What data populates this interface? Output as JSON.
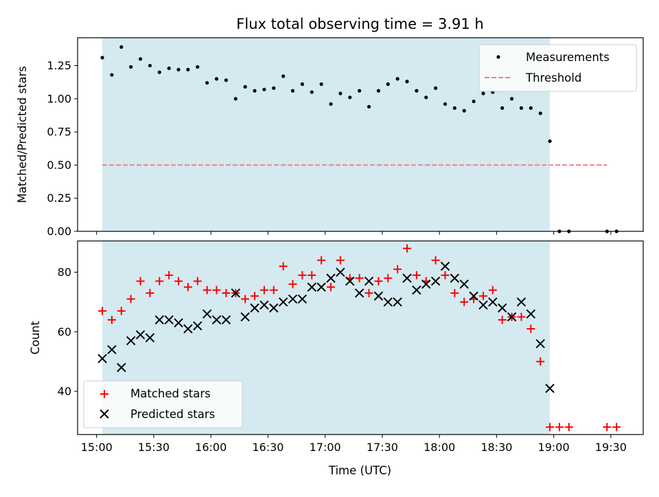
{
  "chart_data": {
    "title": "Flux total observing time = 3.91 h",
    "xlabel": "Time (UTC)",
    "x_tick_labels": [
      "15:00",
      "15:30",
      "16:00",
      "16:30",
      "17:00",
      "17:30",
      "18:00",
      "18:30",
      "19:00",
      "19:30"
    ],
    "x_tick_minutes": [
      0,
      30,
      60,
      90,
      120,
      150,
      180,
      210,
      240,
      270
    ],
    "xlim_minutes": [
      -10,
      287
    ],
    "shaded_span_minutes": [
      3,
      238
    ],
    "shaded_color": "#d4eaf0",
    "panels": [
      {
        "type": "scatter",
        "ylabel": "Matched/Predicted stars",
        "ylim": [
          0,
          1.46
        ],
        "y_ticks": [
          0.0,
          0.25,
          0.5,
          0.75,
          1.0,
          1.25
        ],
        "y_tick_labels": [
          "0.00",
          "0.25",
          "0.50",
          "0.75",
          "1.00",
          "1.25"
        ],
        "legend_position": "top-right",
        "legend": [
          "Measurements",
          "Threshold"
        ],
        "threshold": {
          "label": "Threshold",
          "y": 0.5,
          "x_range_minutes": [
            3,
            268
          ],
          "color": "#f08080"
        },
        "series": [
          {
            "name": "Measurements",
            "marker": "dot",
            "color": "#000000",
            "x": [
              3,
              8,
              13,
              18,
              23,
              28,
              33,
              38,
              43,
              48,
              53,
              58,
              63,
              68,
              73,
              78,
              83,
              88,
              93,
              98,
              103,
              108,
              113,
              118,
              123,
              128,
              133,
              138,
              143,
              148,
              153,
              158,
              163,
              168,
              173,
              178,
              183,
              188,
              193,
              198,
              203,
              208,
              213,
              218,
              223,
              228,
              233,
              238,
              243,
              248,
              268,
              273
            ],
            "y": [
              1.31,
              1.18,
              1.39,
              1.24,
              1.3,
              1.25,
              1.2,
              1.23,
              1.22,
              1.22,
              1.24,
              1.12,
              1.15,
              1.14,
              1.0,
              1.09,
              1.06,
              1.07,
              1.08,
              1.17,
              1.06,
              1.11,
              1.05,
              1.11,
              0.96,
              1.04,
              1.01,
              1.06,
              0.94,
              1.06,
              1.11,
              1.15,
              1.13,
              1.06,
              1.01,
              1.08,
              0.96,
              0.93,
              0.91,
              0.98,
              1.04,
              1.05,
              0.93,
              1.0,
              0.93,
              0.93,
              0.89,
              0.68,
              0.0,
              0.0,
              0.0,
              0.0
            ]
          }
        ]
      },
      {
        "type": "scatter",
        "ylabel": "Count",
        "ylim": [
          25.5,
          90.5
        ],
        "y_ticks": [
          40,
          60,
          80
        ],
        "y_tick_labels": [
          "40",
          "60",
          "80"
        ],
        "legend_position": "bottom-left",
        "legend": [
          "Matched stars",
          "Predicted stars"
        ],
        "series": [
          {
            "name": "Matched stars",
            "marker": "plus",
            "color": "#ff0000",
            "x": [
              3,
              8,
              13,
              18,
              23,
              28,
              33,
              38,
              43,
              48,
              53,
              58,
              63,
              68,
              73,
              78,
              83,
              88,
              93,
              98,
              103,
              108,
              113,
              118,
              123,
              128,
              133,
              138,
              143,
              148,
              153,
              158,
              163,
              168,
              173,
              178,
              183,
              188,
              193,
              198,
              203,
              208,
              213,
              218,
              223,
              228,
              233,
              238,
              243,
              248,
              268,
              273
            ],
            "y": [
              67,
              64,
              67,
              71,
              77,
              73,
              77,
              79,
              77,
              75,
              77,
              74,
              74,
              73,
              73,
              71,
              72,
              74,
              74,
              82,
              76,
              79,
              79,
              84,
              75,
              84,
              78,
              78,
              73,
              77,
              78,
              81,
              88,
              79,
              77,
              84,
              79,
              73,
              70,
              71,
              72,
              74,
              64,
              65,
              65,
              61,
              50,
              28,
              28,
              28,
              28,
              28
            ]
          },
          {
            "name": "Predicted stars",
            "marker": "x",
            "color": "#000000",
            "x": [
              3,
              8,
              13,
              18,
              23,
              28,
              33,
              38,
              43,
              48,
              53,
              58,
              63,
              68,
              73,
              78,
              83,
              88,
              93,
              98,
              103,
              108,
              113,
              118,
              123,
              128,
              133,
              138,
              143,
              148,
              153,
              158,
              163,
              168,
              173,
              178,
              183,
              188,
              193,
              198,
              203,
              208,
              213,
              218,
              223,
              228,
              233,
              238
            ],
            "y": [
              51,
              54,
              48,
              57,
              59,
              58,
              64,
              64,
              63,
              61,
              62,
              66,
              64,
              64,
              73,
              65,
              68,
              69,
              68,
              70,
              71,
              71,
              75,
              75,
              78,
              80,
              77,
              73,
              77,
              72,
              70,
              70,
              78,
              74,
              76,
              77,
              82,
              78,
              76,
              72,
              69,
              70,
              68,
              65,
              70,
              66,
              56,
              41
            ]
          }
        ]
      }
    ]
  }
}
